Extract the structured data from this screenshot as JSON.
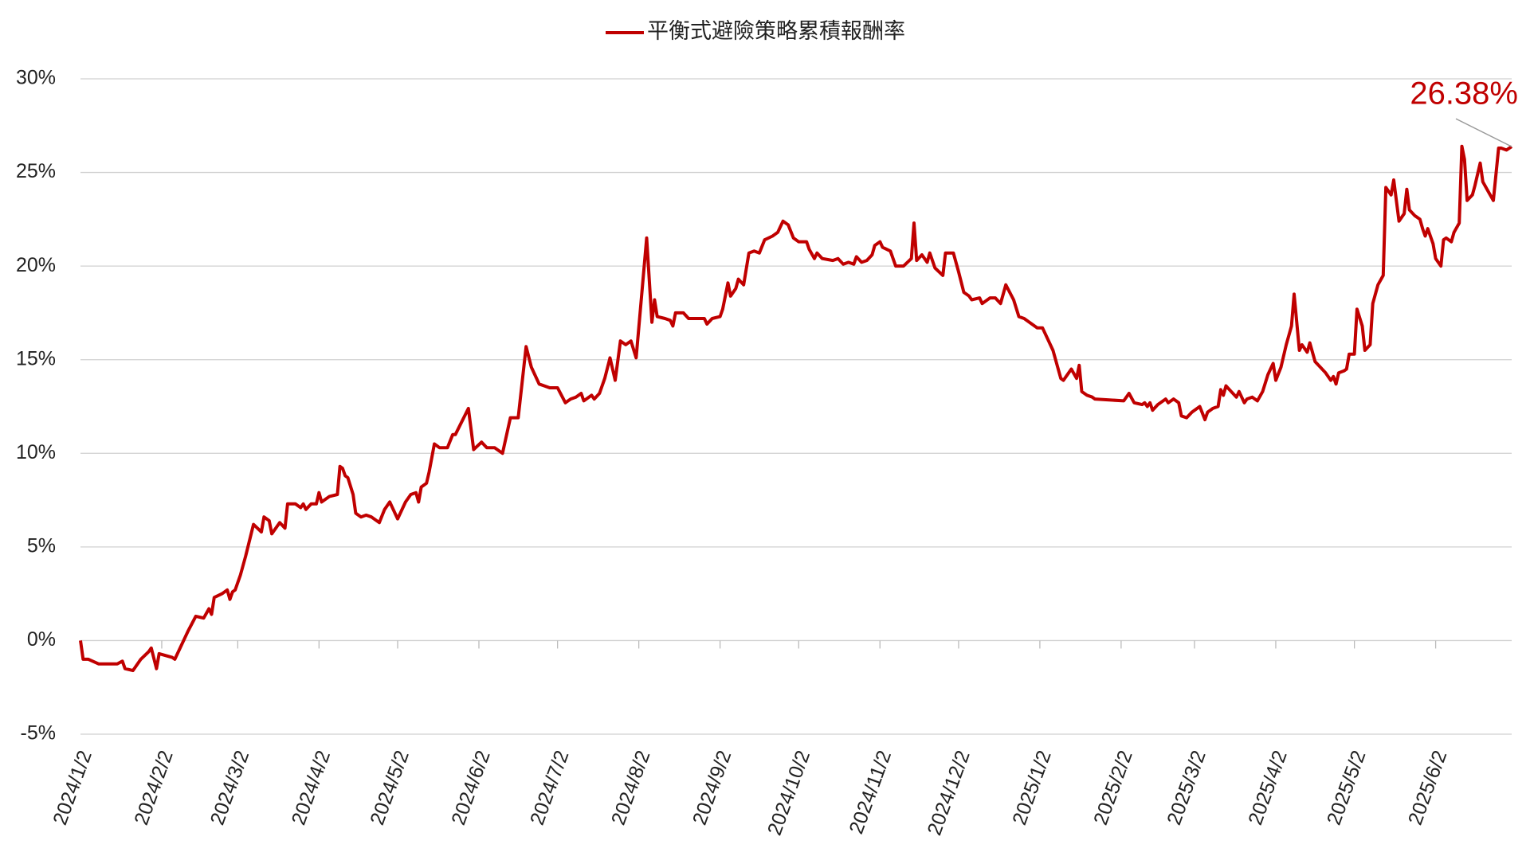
{
  "chart_data": {
    "type": "line",
    "legend": "top",
    "grid": true,
    "series": [
      {
        "name": "平衡式避險策略累積報酬率",
        "color": "#c00000",
        "x": [
          "2024/1/2",
          "2024/1/3",
          "2024/1/5",
          "2024/1/9",
          "2024/1/16",
          "2024/1/18",
          "2024/1/19",
          "2024/1/22",
          "2024/1/25",
          "2024/1/28",
          "2024/1/29",
          "2024/1/31",
          "2024/2/1",
          "2024/2/6",
          "2024/2/7",
          "2024/2/12",
          "2024/2/15",
          "2024/2/18",
          "2024/2/20",
          "2024/2/21",
          "2024/2/22",
          "2024/2/25",
          "2024/2/27",
          "2024/2/28",
          "2024/2/29",
          "2024/3/1",
          "2024/3/3",
          "2024/3/5",
          "2024/3/8",
          "2024/3/11",
          "2024/3/12",
          "2024/3/14",
          "2024/3/15",
          "2024/3/18",
          "2024/3/20",
          "2024/3/21",
          "2024/3/24",
          "2024/3/26",
          "2024/3/27",
          "2024/3/28",
          "2024/3/30",
          "2024/4/1",
          "2024/4/2",
          "2024/4/3",
          "2024/4/6",
          "2024/4/9",
          "2024/4/10",
          "2024/4/11",
          "2024/4/12",
          "2024/4/13",
          "2024/4/15",
          "2024/4/16",
          "2024/4/18",
          "2024/4/20",
          "2024/4/22",
          "2024/4/25",
          "2024/4/27",
          "2024/4/29",
          "2024/5/2",
          "2024/5/5",
          "2024/5/7",
          "2024/5/9",
          "2024/5/10",
          "2024/5/11",
          "2024/5/13",
          "2024/5/14",
          "2024/5/16",
          "2024/5/18",
          "2024/5/21",
          "2024/5/23",
          "2024/5/24",
          "2024/5/29",
          "2024/5/31",
          "2024/6/3",
          "2024/6/5",
          "2024/6/8",
          "2024/6/11",
          "2024/6/14",
          "2024/6/17",
          "2024/6/20",
          "2024/6/22",
          "2024/6/25",
          "2024/6/27",
          "2024/6/29",
          "2024/7/2",
          "2024/7/5",
          "2024/7/7",
          "2024/7/9",
          "2024/7/11",
          "2024/7/12",
          "2024/7/15",
          "2024/7/16",
          "2024/7/18",
          "2024/7/20",
          "2024/7/22",
          "2024/7/24",
          "2024/7/26",
          "2024/7/28",
          "2024/7/30",
          "2024/8/1",
          "2024/8/5",
          "2024/8/7",
          "2024/8/8",
          "2024/8/9",
          "2024/8/12",
          "2024/8/14",
          "2024/8/15",
          "2024/8/16",
          "2024/8/19",
          "2024/8/21",
          "2024/8/24",
          "2024/8/27",
          "2024/8/28",
          "2024/8/30",
          "2024/9/2",
          "2024/9/3",
          "2024/9/5",
          "2024/9/6",
          "2024/9/8",
          "2024/9/9",
          "2024/9/11",
          "2024/9/13",
          "2024/9/15",
          "2024/9/17",
          "2024/9/19",
          "2024/9/22",
          "2024/9/24",
          "2024/9/26",
          "2024/9/28",
          "2024/9/30",
          "2024/10/2",
          "2024/10/5",
          "2024/10/6",
          "2024/10/8",
          "2024/10/9",
          "2024/10/11",
          "2024/10/15",
          "2024/10/17",
          "2024/10/19",
          "2024/10/21",
          "2024/10/23",
          "2024/10/24",
          "2024/10/26",
          "2024/10/28",
          "2024/10/30",
          "2024/10/31",
          "2024/11/2",
          "2024/11/3",
          "2024/11/6",
          "2024/11/8",
          "2024/11/11",
          "2024/11/14",
          "2024/11/15",
          "2024/11/16",
          "2024/11/18",
          "2024/11/20",
          "2024/11/21",
          "2024/11/23",
          "2024/11/26",
          "2024/11/27",
          "2024/11/30",
          "2024/12/2",
          "2024/12/4",
          "2024/12/6",
          "2024/12/7",
          "2024/12/10",
          "2024/12/11",
          "2024/12/14",
          "2024/12/16",
          "2024/12/18",
          "2024/12/20",
          "2024/12/23",
          "2024/12/25",
          "2024/12/27",
          "2024/12/29",
          "2025/1/1",
          "2025/1/3",
          "2025/1/5",
          "2025/1/7",
          "2025/1/10",
          "2025/1/11",
          "2025/1/13",
          "2025/1/14",
          "2025/1/16",
          "2025/1/17",
          "2025/1/18",
          "2025/1/20",
          "2025/1/22",
          "2025/1/23",
          "2025/2/3",
          "2025/2/5",
          "2025/2/7",
          "2025/2/10",
          "2025/2/11",
          "2025/2/12",
          "2025/2/13",
          "2025/2/14",
          "2025/2/16",
          "2025/2/19",
          "2025/2/20",
          "2025/2/22",
          "2025/2/24",
          "2025/2/25",
          "2025/2/27",
          "2025/3/1",
          "2025/3/4",
          "2025/3/6",
          "2025/3/7",
          "2025/3/9",
          "2025/3/11",
          "2025/3/12",
          "2025/3/13",
          "2025/3/14",
          "2025/3/16",
          "2025/3/18",
          "2025/3/19",
          "2025/3/21",
          "2025/3/22",
          "2025/3/24",
          "2025/3/26",
          "2025/3/28",
          "2025/3/30",
          "2025/4/1",
          "2025/4/2",
          "2025/4/4",
          "2025/4/6",
          "2025/4/8",
          "2025/4/9",
          "2025/4/11",
          "2025/4/12",
          "2025/4/14",
          "2025/4/15",
          "2025/4/17",
          "2025/4/19",
          "2025/4/21",
          "2025/4/23",
          "2025/4/24",
          "2025/4/25",
          "2025/4/26",
          "2025/4/28",
          "2025/4/29",
          "2025/4/30",
          "2025/5/2",
          "2025/5/3",
          "2025/5/5",
          "2025/5/6",
          "2025/5/8",
          "2025/5/9",
          "2025/5/11",
          "2025/5/13",
          "2025/5/14",
          "2025/5/16",
          "2025/5/17",
          "2025/5/19",
          "2025/5/21",
          "2025/5/22",
          "2025/5/23",
          "2025/5/25",
          "2025/5/27",
          "2025/5/28",
          "2025/5/29",
          "2025/5/30",
          "2025/6/1",
          "2025/6/2",
          "2025/6/4",
          "2025/6/5",
          "2025/6/6",
          "2025/6/8",
          "2025/6/9",
          "2025/6/11",
          "2025/6/12",
          "2025/6/13",
          "2025/6/14",
          "2025/6/16",
          "2025/6/17",
          "2025/6/19",
          "2025/6/20",
          "2025/6/22",
          "2025/6/24",
          "2025/6/26",
          "2025/6/27",
          "2025/6/29",
          "2025/7/1"
        ],
        "values": [
          0,
          -1.0,
          -1.0,
          -1.25,
          -1.25,
          -1.1,
          -1.5,
          -1.6,
          -1.0,
          -0.6,
          -0.4,
          -1.5,
          -0.7,
          -0.9,
          -1.0,
          0.5,
          1.3,
          1.2,
          1.7,
          1.4,
          2.3,
          2.5,
          2.7,
          2.2,
          2.6,
          2.7,
          3.5,
          4.5,
          6.2,
          5.8,
          6.6,
          6.4,
          5.7,
          6.3,
          6.0,
          7.3,
          7.3,
          7.1,
          7.3,
          7.0,
          7.3,
          7.3,
          7.9,
          7.4,
          7.7,
          7.8,
          9.3,
          9.2,
          8.8,
          8.7,
          7.8,
          6.8,
          6.6,
          6.7,
          6.6,
          6.3,
          7.0,
          7.4,
          6.5,
          7.4,
          7.8,
          7.9,
          7.4,
          8.2,
          8.4,
          9.0,
          10.5,
          10.3,
          10.3,
          11.0,
          11.0,
          12.4,
          10.2,
          10.6,
          10.3,
          10.3,
          10.0,
          11.9,
          11.9,
          15.7,
          14.6,
          13.7,
          13.6,
          13.5,
          13.5,
          12.7,
          12.9,
          13.0,
          13.2,
          12.8,
          13.1,
          12.9,
          13.2,
          14.0,
          15.1,
          13.9,
          16.0,
          15.8,
          16.0,
          15.1,
          21.5,
          17.0,
          18.2,
          17.3,
          17.2,
          17.1,
          16.8,
          17.5,
          17.5,
          17.2,
          17.2,
          17.2,
          16.9,
          17.2,
          17.3,
          17.7,
          19.1,
          18.4,
          18.8,
          19.3,
          19.0,
          20.7,
          20.8,
          20.7,
          21.4,
          21.6,
          21.8,
          22.4,
          22.2,
          21.5,
          21.3,
          21.3,
          20.9,
          20.4,
          20.7,
          20.4,
          20.3,
          20.4,
          20.1,
          20.2,
          20.1,
          20.5,
          20.2,
          20.3,
          20.6,
          21.1,
          21.3,
          21.0,
          20.8,
          20.0,
          20.0,
          20.4,
          22.3,
          20.3,
          20.6,
          20.2,
          20.7,
          19.9,
          19.5,
          20.7,
          20.7,
          19.7,
          18.6,
          18.4,
          18.2,
          18.3,
          18.0,
          18.3,
          18.3,
          18.0,
          19.0,
          18.2,
          17.3,
          17.2,
          17.0,
          16.7,
          16.7,
          16.1,
          15.5,
          14.0,
          13.9,
          14.3,
          14.5,
          14.0,
          14.7,
          13.3,
          13.1,
          13.0,
          12.9,
          12.8,
          13.2,
          12.7,
          12.6,
          12.7,
          12.5,
          12.7,
          12.3,
          12.6,
          12.9,
          12.7,
          12.9,
          12.7,
          12.0,
          11.9,
          12.2,
          12.5,
          11.8,
          12.2,
          12.4,
          12.5,
          13.4,
          13.1,
          13.6,
          13.3,
          13.0,
          13.3,
          12.7,
          12.9,
          13.0,
          12.8,
          13.3,
          14.2,
          14.8,
          13.9,
          14.6,
          15.8,
          16.8,
          18.5,
          15.5,
          15.8,
          15.4,
          15.9,
          14.9,
          14.6,
          14.3,
          13.9,
          14.1,
          13.7,
          14.3,
          14.4,
          14.5,
          15.3,
          15.3,
          17.7,
          16.8,
          15.5,
          15.8,
          18.0,
          19.0,
          19.5,
          24.2,
          23.8,
          24.6,
          22.4,
          22.8,
          24.1,
          23.0,
          22.7,
          22.5,
          22.0,
          21.6,
          22.0,
          21.2,
          20.4,
          20.0,
          21.4,
          21.5,
          21.3,
          21.8,
          22.3,
          26.4,
          25.7,
          23.5,
          23.8,
          24.3,
          25.5,
          24.5,
          24.0,
          23.5,
          26.3,
          26.3,
          26.2,
          26.38
        ]
      }
    ],
    "annotation": "26.38%",
    "xlim": [
      "2024/1/2",
      "2025/7/1"
    ],
    "xticks": [
      "2024/1/2",
      "2024/2/2",
      "2024/3/2",
      "2024/4/2",
      "2024/5/2",
      "2024/6/2",
      "2024/7/2",
      "2024/8/2",
      "2024/9/2",
      "2024/10/2",
      "2024/11/2",
      "2024/12/2",
      "2025/1/2",
      "2025/2/2",
      "2025/3/2",
      "2025/4/2",
      "2025/5/2",
      "2025/6/2"
    ],
    "ylim": [
      -5,
      30
    ],
    "yticks": [
      {
        "value": -5,
        "label": "-5%"
      },
      {
        "value": 0,
        "label": "0%"
      },
      {
        "value": 5,
        "label": "5%"
      },
      {
        "value": 10,
        "label": "10%"
      },
      {
        "value": 15,
        "label": "15%"
      },
      {
        "value": 20,
        "label": "20%"
      },
      {
        "value": 25,
        "label": "25%"
      },
      {
        "value": 30,
        "label": "30%"
      }
    ]
  }
}
